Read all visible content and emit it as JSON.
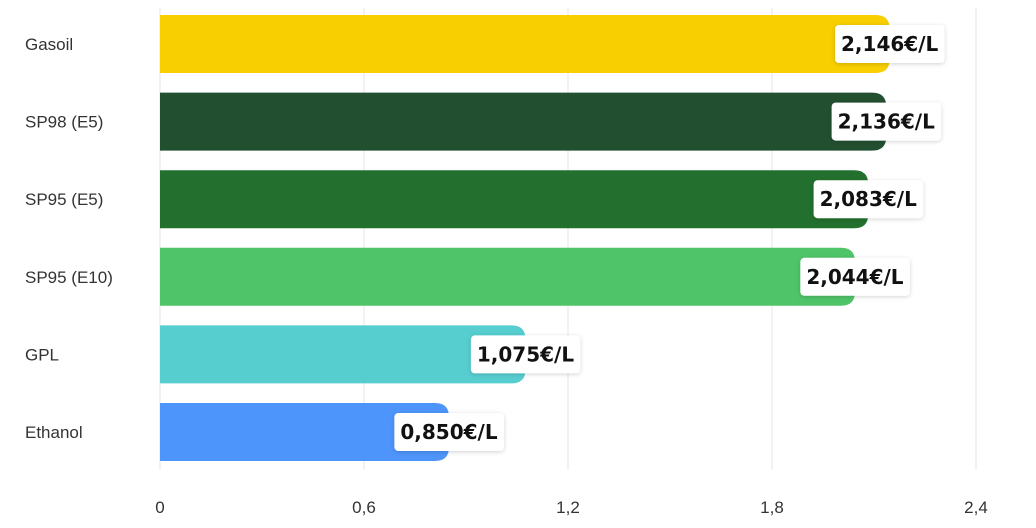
{
  "chart_data": {
    "type": "bar",
    "orientation": "horizontal",
    "categories": [
      "Gasoil",
      "SP98 (E5)",
      "SP95 (E5)",
      "SP95 (E10)",
      "GPL",
      "Ethanol"
    ],
    "values": [
      2.146,
      2.136,
      2.083,
      2.044,
      1.075,
      0.85
    ],
    "data_labels": [
      "2,146€/L",
      "2,136€/L",
      "2,083€/L",
      "2,044€/L",
      "1,075€/L",
      "0,850€/L"
    ],
    "colors": [
      "#f8cf00",
      "#234f31",
      "#23702e",
      "#4fc468",
      "#56cdcf",
      "#4e95fb"
    ],
    "xlim": [
      0,
      2.4
    ],
    "xticks": [
      0,
      0.6,
      1.2,
      1.8,
      2.4
    ],
    "xtick_labels": [
      "0",
      "0,6",
      "1,2",
      "1,8",
      "2,4"
    ],
    "grid": "vertical",
    "legend": "none"
  }
}
